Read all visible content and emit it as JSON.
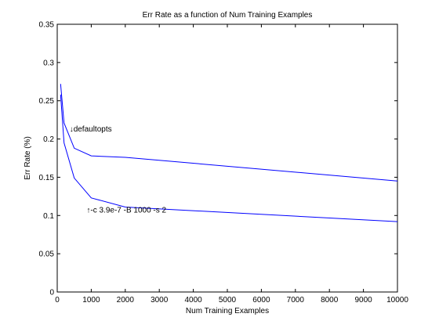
{
  "chart_data": {
    "type": "line",
    "title": "Err Rate as a function of Num Training Examples",
    "xlabel": "Num Training Examples",
    "ylabel": "Err Rate (%)",
    "xlim": [
      0,
      10000
    ],
    "ylim": [
      0,
      0.35
    ],
    "xticks": [
      0,
      1000,
      2000,
      3000,
      4000,
      5000,
      6000,
      7000,
      8000,
      9000,
      10000
    ],
    "xtick_labels": [
      "0",
      "1000",
      "2000",
      "3000",
      "4000",
      "5000",
      "6000",
      "7000",
      "8000",
      "9000",
      "10000"
    ],
    "yticks": [
      0,
      0.05,
      0.1,
      0.15,
      0.2,
      0.25,
      0.3,
      0.35
    ],
    "ytick_labels": [
      "0",
      "0.05",
      "0.1",
      "0.15",
      "0.2",
      "0.25",
      "0.3",
      "0.35"
    ],
    "grid": false,
    "series": [
      {
        "color": "#0000ff",
        "x": [
          100,
          200,
          500,
          1000,
          2000,
          10000
        ],
        "y": [
          0.272,
          0.221,
          0.188,
          0.178,
          0.176,
          0.145
        ]
      },
      {
        "color": "#0000ff",
        "x": [
          100,
          200,
          500,
          1000,
          2000,
          10000
        ],
        "y": [
          0.258,
          0.195,
          0.149,
          0.123,
          0.111,
          0.092
        ]
      }
    ],
    "annotations": [
      {
        "text": "↓defaultopts",
        "x": 500,
        "y": 0.21
      },
      {
        "text": "↑-c 3.9e-7 -B 1000 -s 2",
        "x": 1000,
        "y": 0.104
      }
    ]
  }
}
